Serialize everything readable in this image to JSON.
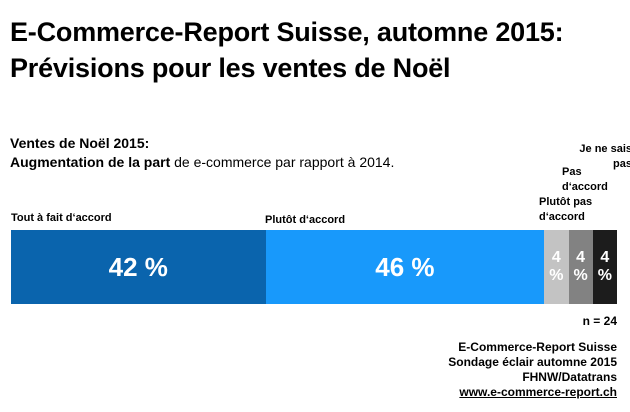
{
  "header": {
    "title_line1": "E-Commerce-Report Suisse, automne 2015:",
    "title_line2": "Prévisions pour les ventes de Noël"
  },
  "subtitle": {
    "line1": "Ventes de Noël 2015:",
    "line2_bold": "Augmentation de la part",
    "line2_regular": " de e-commerce par rapport à 2014."
  },
  "chart_data": {
    "type": "bar",
    "orientation": "horizontal-stacked",
    "title": "Ventes de Noël 2015: Augmentation de la part de e-commerce par rapport à 2014.",
    "unit": "%",
    "categories": [
      "Tout à fait d‘accord",
      "Plutôt d‘accord",
      "Plutôt pas d‘accord",
      "Pas d‘accord",
      "Je ne sais pas"
    ],
    "values": [
      42,
      46,
      4,
      4,
      4
    ],
    "xlim": [
      0,
      100
    ],
    "legend_position": "labels-above-bar",
    "grid": false,
    "sample_size_label": "n = 24",
    "segments": [
      {
        "label": "Tout à fait d‘accord",
        "value": 42,
        "display": "42 %",
        "color": "#0A64AD",
        "text_color": "#FFFFFF"
      },
      {
        "label": "Plutôt d‘accord",
        "value": 46,
        "display": "46 %",
        "color": "#1899FB",
        "text_color": "#FFFFFF"
      },
      {
        "label": "Plutôt pas d‘accord",
        "value": 4,
        "display": "4\n%",
        "color": "#C3C3C3",
        "text_color": "#FFFFFF"
      },
      {
        "label": "Pas d‘accord",
        "value": 4,
        "display": "4\n%",
        "color": "#828282",
        "text_color": "#FFFFFF"
      },
      {
        "label": "Je ne sais pas",
        "value": 4,
        "display": "4\n%",
        "color": "#1C1C1C",
        "text_color": "#FFFFFF"
      }
    ]
  },
  "footer": {
    "lines": [
      "E-Commerce-Report Suisse",
      "Sondage éclair automne 2015",
      "FHNW/Datatrans"
    ],
    "link": "www.e-commerce-report.ch"
  }
}
